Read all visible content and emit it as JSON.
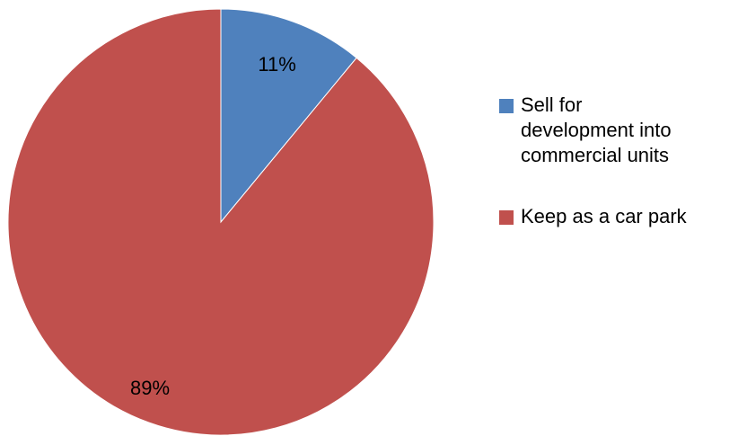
{
  "chart_data": {
    "type": "pie",
    "title": "",
    "legend_position": "right",
    "slices": [
      {
        "name": "Sell for development into commercial units",
        "legend_lines": [
          "Sell for",
          "development into",
          "commercial units"
        ],
        "value": 11,
        "label": "11%",
        "color": "#4F81BD"
      },
      {
        "name": "Keep as a car park",
        "legend_lines": [
          "Keep as a car park"
        ],
        "value": 89,
        "label": "89%",
        "color": "#C0504D"
      }
    ]
  }
}
